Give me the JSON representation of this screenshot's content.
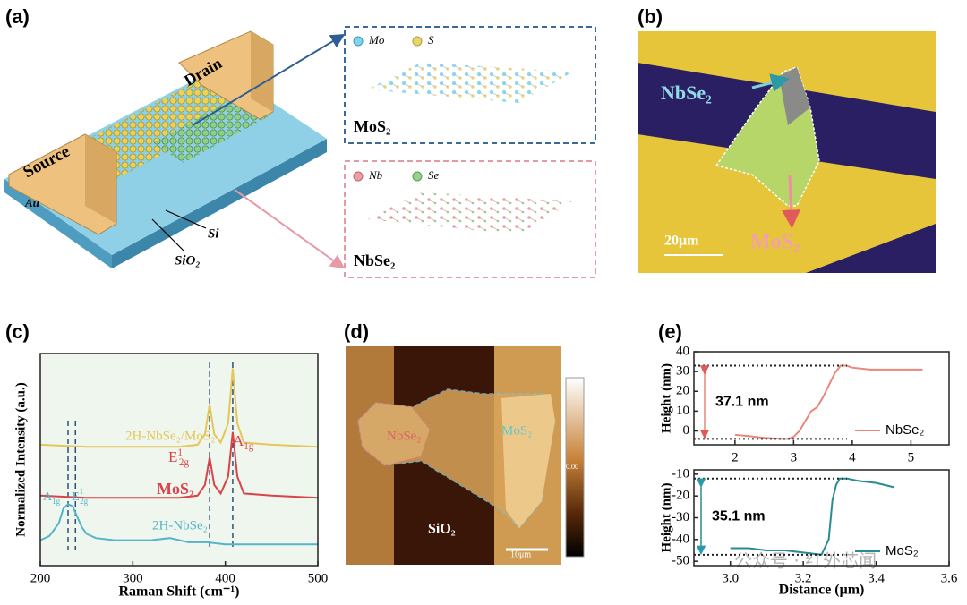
{
  "labels": [
    "(a)",
    "(b)",
    "(c)",
    "(d)",
    "(e)"
  ],
  "panel_a": {
    "drain": "Drain",
    "source": "Source",
    "au": "Au",
    "si": "Si",
    "sio2": "SiO₂",
    "mos2_legend": [
      "Mo",
      "S"
    ],
    "mos2": "MoS₂",
    "nbse2_legend": [
      "Nb",
      "Se"
    ],
    "nbse2": "NbSe₂"
  },
  "panel_b": {
    "nbse2": "NbSe₂",
    "mos2": "MoS₂",
    "scale": "20μm"
  },
  "panel_d": {
    "nbse2": "NbSe₂",
    "mos2": "MoS₂",
    "sio2": "SiO₂",
    "scale": "10μm",
    "colorbar_mid": "0.00"
  },
  "chart_data": [
    {
      "type": "line",
      "xlabel": "Raman Shift (cm⁻¹)",
      "ylabel": "Normalized Intensity (a.u.)",
      "xlim": [
        200,
        500
      ],
      "ylim": [
        0,
        10
      ],
      "xticks": [
        200,
        300,
        400,
        500
      ],
      "peak_lines": [
        230,
        238,
        383,
        408
      ],
      "peak_labels": [
        {
          "base": "E",
          "sup": "1",
          "sub": "2g"
        },
        {
          "base": "A",
          "sub": "1g"
        },
        {
          "base": "A",
          "sub": "1g"
        },
        {
          "base": "E",
          "sup": "1",
          "sub": "2g"
        }
      ],
      "series": [
        {
          "name": "2H-NbSe₂/MoS₂",
          "color": "#e6c65a",
          "x": [
            200,
            250,
            300,
            350,
            370,
            378,
            383,
            388,
            395,
            403,
            408,
            413,
            420,
            450,
            500
          ],
          "values": [
            5.7,
            5.6,
            5.6,
            5.6,
            5.7,
            6.2,
            7.6,
            6.2,
            5.8,
            6.7,
            9.3,
            6.7,
            5.8,
            5.7,
            5.6
          ]
        },
        {
          "name": "MoS₂",
          "color": "#d9434a",
          "x": [
            200,
            250,
            300,
            350,
            370,
            378,
            383,
            388,
            395,
            403,
            408,
            413,
            420,
            450,
            500
          ],
          "values": [
            3.3,
            3.2,
            3.2,
            3.2,
            3.3,
            3.8,
            5.1,
            3.8,
            3.4,
            4.2,
            6.3,
            4.2,
            3.4,
            3.3,
            3.2
          ]
        },
        {
          "name": "2H-NbSe₂",
          "color": "#56b4c9",
          "x": [
            200,
            210,
            220,
            225,
            230,
            235,
            240,
            245,
            250,
            260,
            280,
            300,
            320,
            340,
            360,
            380,
            400,
            420,
            450,
            500
          ],
          "values": [
            1.2,
            1.4,
            2.0,
            2.7,
            2.9,
            2.8,
            2.3,
            1.8,
            1.5,
            1.3,
            1.2,
            1.2,
            1.2,
            1.3,
            1.1,
            1.1,
            1.0,
            1.0,
            1.0,
            1.0
          ]
        }
      ]
    },
    {
      "type": "line",
      "ylabel": "Height (nm)",
      "xlim": [
        1.3,
        5.65
      ],
      "ylim": [
        -7,
        40
      ],
      "xticks": [
        2,
        3,
        4,
        5
      ],
      "yticks": [
        40,
        30,
        20,
        10,
        0
      ],
      "ref_lines": [
        33,
        -4
      ],
      "annotation": "37.1 nm",
      "series": [
        {
          "name": "NbSe₂",
          "color": "#e8877a",
          "x": [
            2.0,
            2.2,
            2.5,
            2.8,
            2.9,
            3.0,
            3.1,
            3.2,
            3.3,
            3.4,
            3.5,
            3.6,
            3.7,
            3.8,
            3.9,
            4.0,
            4.3,
            4.7,
            5.2
          ],
          "values": [
            -2,
            -2.5,
            -3.5,
            -4,
            -4,
            -3,
            0,
            5,
            10,
            12,
            17,
            23,
            29,
            33,
            33,
            32,
            31,
            31,
            31
          ]
        }
      ]
    },
    {
      "type": "line",
      "xlabel": "Distance (μm)",
      "ylabel": "Height (nm)",
      "xlim": [
        2.9,
        3.6
      ],
      "ylim": [
        -52,
        -8
      ],
      "xticks": [
        {
          "value": 3,
          "label": "3.0"
        },
        3.2,
        3.4,
        3.6
      ],
      "yticks": [
        -10,
        -20,
        -30,
        -40,
        -50
      ],
      "ref_lines": [
        -12,
        -47
      ],
      "annotation": "35.1 nm",
      "series": [
        {
          "name": "MoS₂",
          "color": "#2a8b92",
          "x": [
            3.0,
            3.05,
            3.1,
            3.15,
            3.2,
            3.25,
            3.27,
            3.28,
            3.29,
            3.3,
            3.32,
            3.35,
            3.4,
            3.45
          ],
          "values": [
            -44,
            -44,
            -45,
            -45,
            -46,
            -47,
            -40,
            -22,
            -15,
            -12,
            -12,
            -13,
            -14,
            -16
          ]
        }
      ]
    }
  ],
  "watermark": "公众号 · 红外芯闻"
}
